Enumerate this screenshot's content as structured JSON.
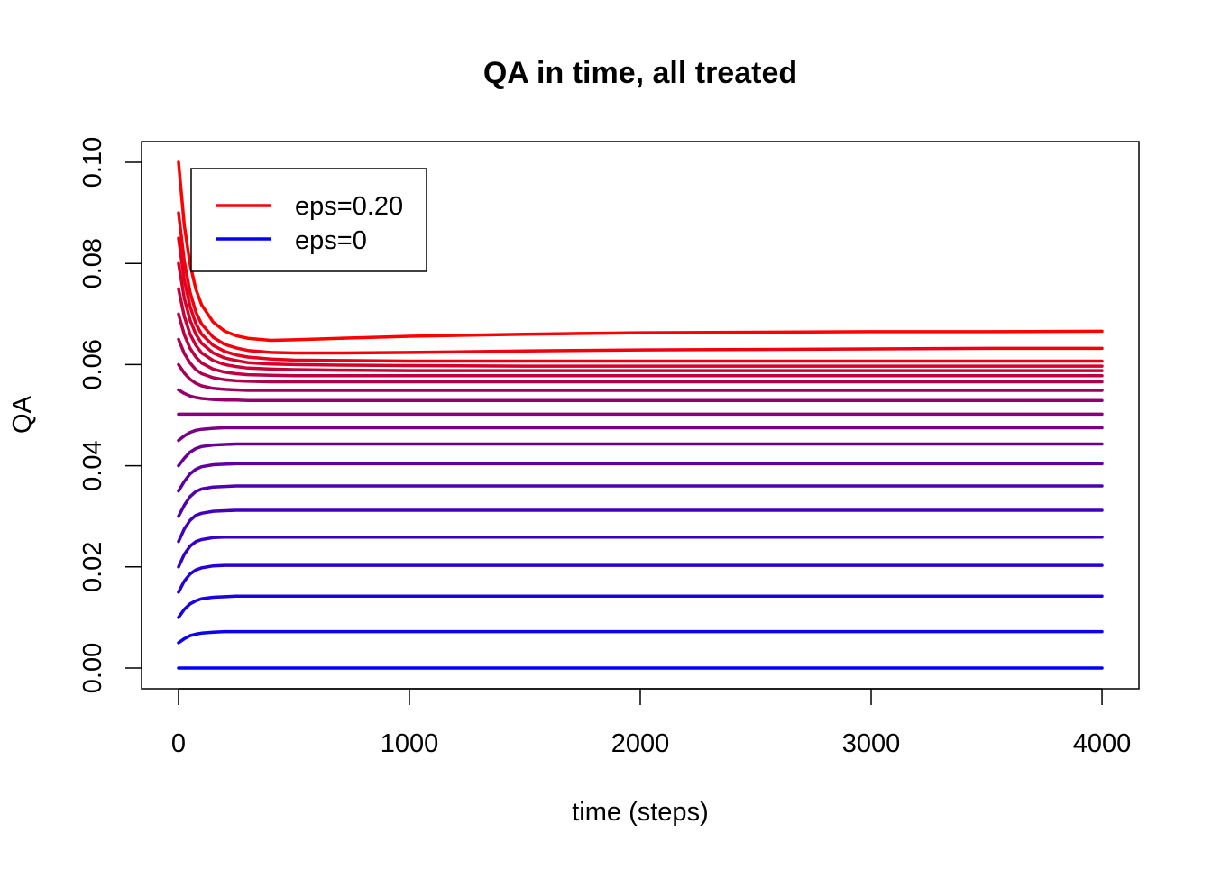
{
  "chart_data": {
    "type": "line",
    "title": "QA in time, all treated",
    "xlabel": "time (steps)",
    "ylabel": "QA",
    "xlim": [
      -160,
      4160
    ],
    "ylim": [
      -0.0041,
      0.1041
    ],
    "xticks": [
      0,
      1000,
      2000,
      3000,
      4000
    ],
    "xtick_labels": [
      "0",
      "1000",
      "2000",
      "3000",
      "4000"
    ],
    "yticks": [
      0.0,
      0.02,
      0.04,
      0.06,
      0.08,
      0.1
    ],
    "ytick_labels": [
      "0.00",
      "0.02",
      "0.04",
      "0.06",
      "0.08",
      "0.10"
    ],
    "grid": false,
    "legend": {
      "position": "top-left",
      "entries": [
        {
          "label": "eps=0.20",
          "color": "#ff0000"
        },
        {
          "label": "eps=0",
          "color": "#0000ff"
        }
      ]
    },
    "colors": {
      "high_eps": "#ff0000",
      "low_eps": "#0000ff"
    },
    "x": [
      0,
      25,
      50,
      75,
      100,
      150,
      200,
      250,
      300,
      400,
      500,
      700,
      1000,
      1500,
      2000,
      2500,
      3000,
      3500,
      4000
    ],
    "series": [
      {
        "values": [
          0.0,
          0.0,
          0.0,
          0.0,
          0.0,
          0.0,
          0.0,
          0.0,
          0.0,
          0.0,
          0.0,
          0.0,
          0.0,
          0.0,
          0.0,
          0.0,
          0.0,
          0.0,
          0.0
        ]
      },
      {
        "values": [
          0.005,
          0.0058,
          0.0064,
          0.0067,
          0.0069,
          0.0071,
          0.0072,
          0.0072,
          0.0072,
          0.0072,
          0.0072,
          0.0072,
          0.0072,
          0.0072,
          0.0072,
          0.0072,
          0.0072,
          0.0072,
          0.0072
        ]
      },
      {
        "values": [
          0.01,
          0.0116,
          0.0127,
          0.0133,
          0.0137,
          0.014,
          0.0141,
          0.0142,
          0.0142,
          0.0142,
          0.0142,
          0.0142,
          0.0142,
          0.0142,
          0.0142,
          0.0142,
          0.0142,
          0.0142,
          0.0142
        ]
      },
      {
        "values": [
          0.015,
          0.0172,
          0.0186,
          0.0194,
          0.0198,
          0.0202,
          0.0203,
          0.0203,
          0.0203,
          0.0203,
          0.0203,
          0.0203,
          0.0203,
          0.0203,
          0.0203,
          0.0203,
          0.0203,
          0.0203,
          0.0203
        ]
      },
      {
        "values": [
          0.02,
          0.0225,
          0.0241,
          0.025,
          0.0254,
          0.0258,
          0.0259,
          0.0259,
          0.0259,
          0.0259,
          0.0259,
          0.0259,
          0.0259,
          0.0259,
          0.0259,
          0.0259,
          0.0259,
          0.0259,
          0.0259
        ]
      },
      {
        "values": [
          0.025,
          0.0275,
          0.0292,
          0.0302,
          0.0306,
          0.031,
          0.0311,
          0.0312,
          0.0312,
          0.0312,
          0.0312,
          0.0312,
          0.0312,
          0.0312,
          0.0312,
          0.0312,
          0.0312,
          0.0312,
          0.0312
        ]
      },
      {
        "values": [
          0.03,
          0.0322,
          0.0339,
          0.0349,
          0.0354,
          0.0358,
          0.0359,
          0.036,
          0.036,
          0.036,
          0.036,
          0.036,
          0.036,
          0.036,
          0.036,
          0.036,
          0.036,
          0.036,
          0.036
        ]
      },
      {
        "values": [
          0.035,
          0.0369,
          0.0384,
          0.0393,
          0.0398,
          0.0402,
          0.0403,
          0.0404,
          0.0404,
          0.0404,
          0.0404,
          0.0404,
          0.0404,
          0.0404,
          0.0404,
          0.0404,
          0.0404,
          0.0404,
          0.0404
        ]
      },
      {
        "values": [
          0.04,
          0.0415,
          0.0427,
          0.0434,
          0.0438,
          0.0441,
          0.0442,
          0.0443,
          0.0443,
          0.0443,
          0.0443,
          0.0443,
          0.0443,
          0.0443,
          0.0443,
          0.0443,
          0.0443,
          0.0443,
          0.0443
        ]
      },
      {
        "values": [
          0.045,
          0.0459,
          0.0466,
          0.047,
          0.0472,
          0.0474,
          0.0475,
          0.0475,
          0.0475,
          0.0475,
          0.0475,
          0.0475,
          0.0475,
          0.0475,
          0.0475,
          0.0475,
          0.0475,
          0.0475,
          0.0475
        ]
      },
      {
        "values": [
          0.0502,
          0.0502,
          0.0502,
          0.0502,
          0.0502,
          0.0502,
          0.0502,
          0.0502,
          0.0502,
          0.0502,
          0.0502,
          0.0502,
          0.0502,
          0.0502,
          0.0502,
          0.0502,
          0.0502,
          0.0502,
          0.0502
        ]
      },
      {
        "values": [
          0.055,
          0.0543,
          0.0538,
          0.0535,
          0.0533,
          0.0531,
          0.053,
          0.053,
          0.0529,
          0.0529,
          0.0529,
          0.0529,
          0.0529,
          0.0529,
          0.0529,
          0.0529,
          0.0529,
          0.0529,
          0.0529
        ]
      },
      {
        "values": [
          0.06,
          0.0583,
          0.0571,
          0.0563,
          0.0558,
          0.0553,
          0.0551,
          0.055,
          0.0549,
          0.0549,
          0.0549,
          0.0549,
          0.0549,
          0.0549,
          0.0549,
          0.0549,
          0.0549,
          0.0549,
          0.0549
        ]
      },
      {
        "values": [
          0.065,
          0.0622,
          0.0603,
          0.059,
          0.0582,
          0.0574,
          0.057,
          0.0568,
          0.0567,
          0.0566,
          0.0566,
          0.0566,
          0.0566,
          0.0566,
          0.0566,
          0.0566,
          0.0566,
          0.0566,
          0.0566
        ]
      },
      {
        "values": [
          0.07,
          0.0659,
          0.0632,
          0.0615,
          0.0603,
          0.0591,
          0.0585,
          0.0582,
          0.058,
          0.0579,
          0.0578,
          0.0578,
          0.0578,
          0.0578,
          0.0578,
          0.0578,
          0.0578,
          0.0578,
          0.0578
        ]
      },
      {
        "values": [
          0.075,
          0.0695,
          0.066,
          0.0638,
          0.0623,
          0.0608,
          0.06,
          0.0596,
          0.0593,
          0.0591,
          0.059,
          0.0589,
          0.0588,
          0.0588,
          0.0588,
          0.0588,
          0.0588,
          0.0588,
          0.0588
        ]
      },
      {
        "values": [
          0.08,
          0.0731,
          0.0688,
          0.066,
          0.0642,
          0.0623,
          0.0613,
          0.0608,
          0.0604,
          0.0601,
          0.06,
          0.0599,
          0.0598,
          0.0597,
          0.0597,
          0.0597,
          0.0597,
          0.0597,
          0.0597
        ]
      },
      {
        "values": [
          0.085,
          0.0767,
          0.0715,
          0.0681,
          0.066,
          0.0638,
          0.0626,
          0.0619,
          0.0615,
          0.0611,
          0.0609,
          0.0608,
          0.0607,
          0.0607,
          0.0607,
          0.0607,
          0.0607,
          0.0607,
          0.0607
        ]
      },
      {
        "values": [
          0.09,
          0.0804,
          0.0743,
          0.0704,
          0.068,
          0.0654,
          0.064,
          0.0633,
          0.0628,
          0.0624,
          0.0623,
          0.0623,
          0.0624,
          0.0627,
          0.0629,
          0.063,
          0.0631,
          0.0632,
          0.0632
        ]
      },
      {
        "values": [
          0.1,
          0.0875,
          0.0798,
          0.0749,
          0.0718,
          0.0684,
          0.0666,
          0.0657,
          0.0652,
          0.0648,
          0.0649,
          0.0652,
          0.0656,
          0.066,
          0.0663,
          0.0664,
          0.0665,
          0.0665,
          0.0666
        ]
      }
    ]
  }
}
